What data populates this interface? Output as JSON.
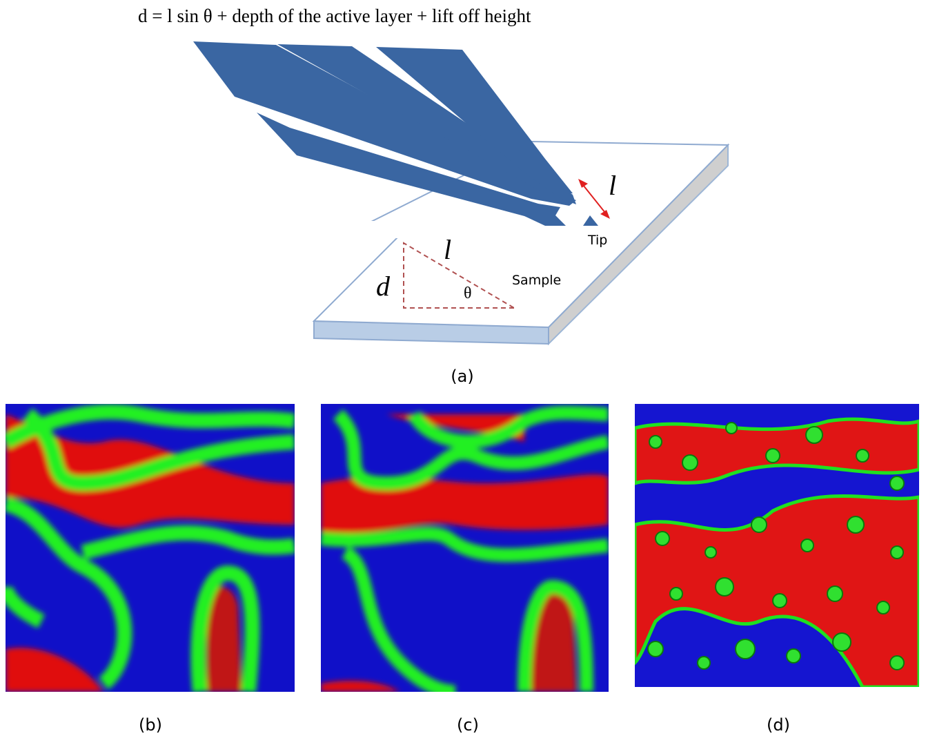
{
  "equation": "d = l sin θ + depth of the active layer + lift off height",
  "schematic": {
    "arrow_label": "l",
    "tip_label": "Tip",
    "triangle": {
      "side_d": "d",
      "side_l": "l",
      "angle": "θ"
    },
    "sample_label": "Sample"
  },
  "panels": [
    {
      "label": "(a)"
    },
    {
      "label": "(b)"
    },
    {
      "label": "(c)"
    },
    {
      "label": "(d)"
    }
  ]
}
